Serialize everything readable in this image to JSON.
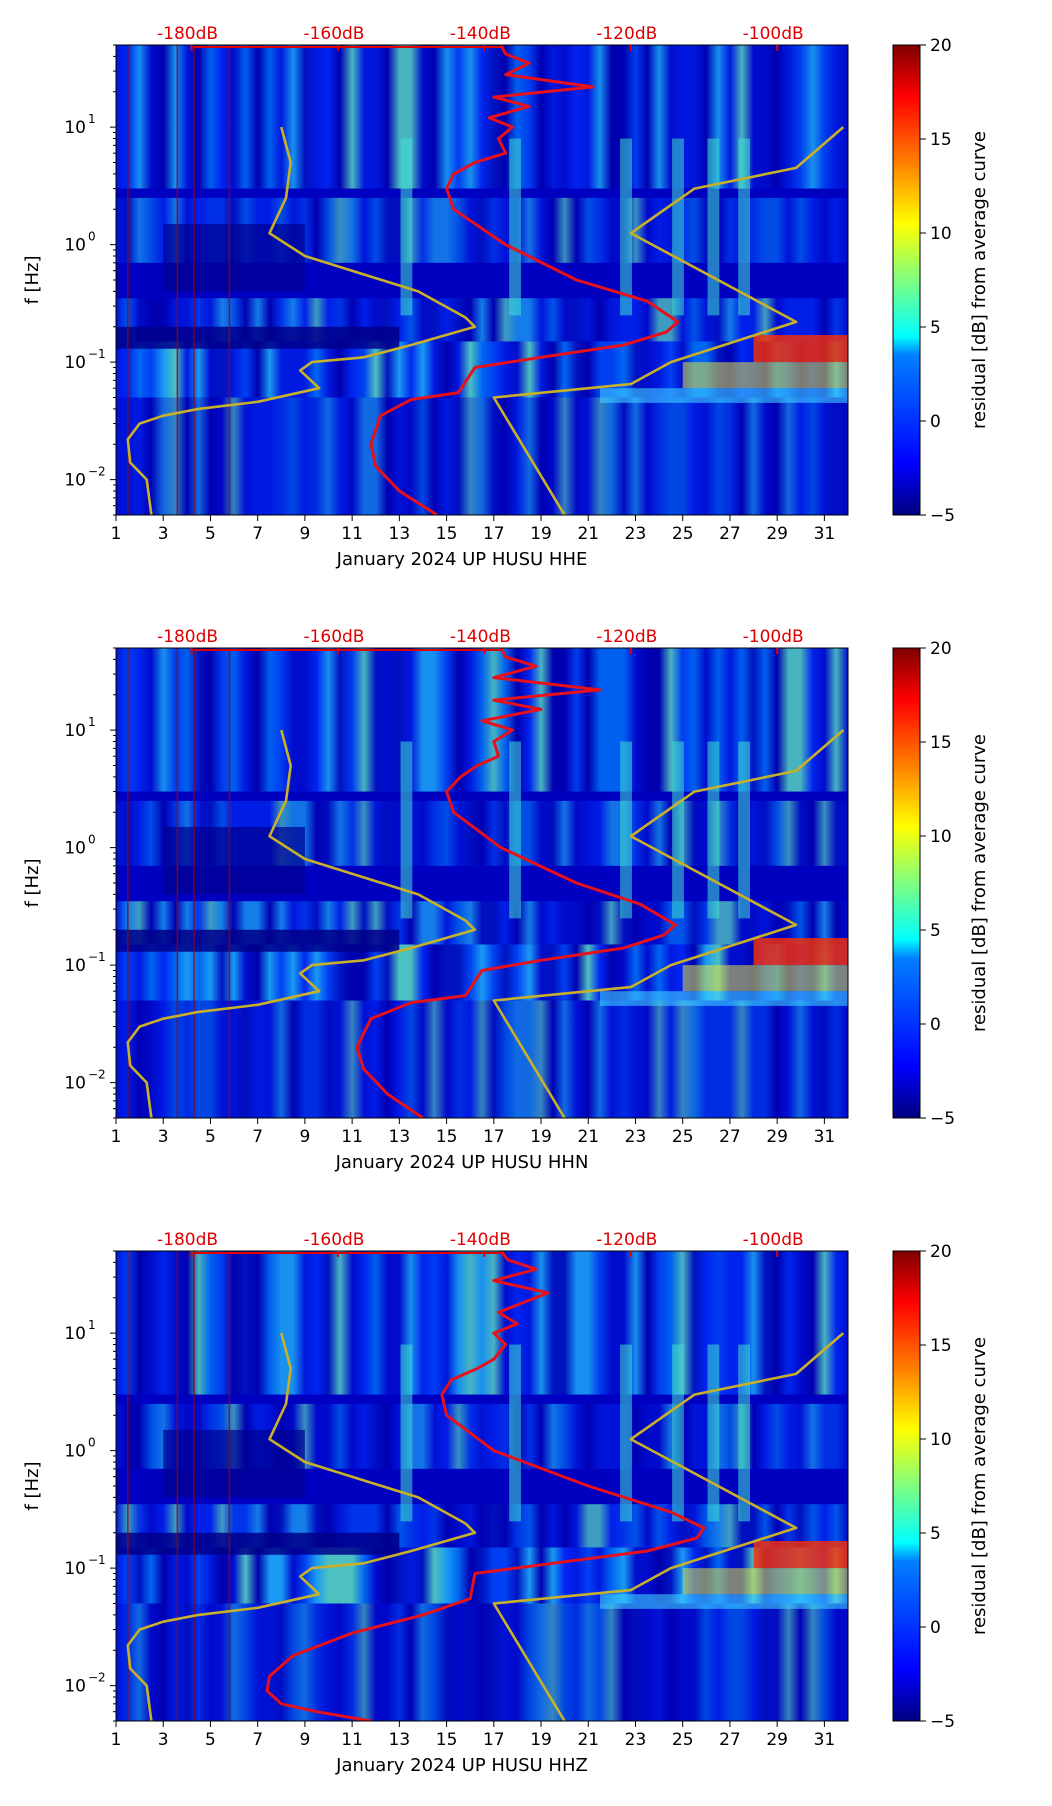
{
  "colors": {
    "red_curve": "#e8101a",
    "yellow_curve": "#c8b02a",
    "db_label": "#e00000",
    "colormap": [
      "#00007f",
      "#0000ff",
      "#007fff",
      "#00ffff",
      "#7fff7f",
      "#ffff00",
      "#ff7f00",
      "#ff0000",
      "#7f0000"
    ]
  },
  "colorbar": {
    "label": "residual [dB] from average curve",
    "ticks": [
      {
        "value": -5,
        "label": "−5"
      },
      {
        "value": 0,
        "label": "0"
      },
      {
        "value": 5,
        "label": "5"
      },
      {
        "value": 10,
        "label": "10"
      },
      {
        "value": 15,
        "label": "15"
      },
      {
        "value": 20,
        "label": "20"
      }
    ]
  },
  "chart_data": [
    {
      "type": "heatmap",
      "title": "",
      "xlabel": "January 2024 UP HUSU  HHE",
      "ylabel": "f [Hz]",
      "xlim": [
        1,
        32
      ],
      "ylim": [
        0.005,
        50
      ],
      "xticks": [
        "1",
        "3",
        "5",
        "7",
        "9",
        "11",
        "13",
        "15",
        "17",
        "19",
        "21",
        "23",
        "25",
        "27",
        "29",
        "31"
      ],
      "yticks": [
        {
          "value": 0.01,
          "label": "10"
        },
        {
          "value": 0.1,
          "label": "10"
        },
        {
          "value": 1,
          "label": "10"
        },
        {
          "value": 10,
          "label": "10"
        }
      ],
      "ytick_exponents": [
        "−2",
        "−1",
        "0",
        "1"
      ],
      "top_axis_labels": [
        "-180dB",
        "-160dB",
        "-140dB",
        "-120dB",
        "-100dB"
      ],
      "top_axis_positions": [
        4.2,
        10.4,
        16.6,
        22.8,
        29.0
      ],
      "colorbar_range": [
        -5,
        20
      ],
      "series": [
        {
          "name": "average curve (red)",
          "x": [
            14.6,
            13.0,
            12.0,
            11.8,
            12.2,
            13.5,
            15.5,
            16.2,
            19.0,
            22.5,
            24.3,
            24.8,
            23.5,
            20.5,
            17.5,
            15.3,
            15.0,
            15.3,
            16.2,
            17.5,
            17.2,
            17.8,
            16.8,
            18.5,
            17.0,
            21.2,
            17.5,
            18.5,
            17.5,
            17.3
          ],
          "y": [
            0.005,
            0.008,
            0.013,
            0.02,
            0.035,
            0.048,
            0.055,
            0.09,
            0.11,
            0.14,
            0.18,
            0.22,
            0.33,
            0.5,
            1.0,
            2.0,
            3.0,
            4.0,
            5.0,
            6.0,
            8.0,
            10.0,
            12.0,
            15.0,
            18.0,
            22.0,
            28.0,
            35.0,
            42.0,
            50.0
          ]
        },
        {
          "name": "noise model low (yellow)",
          "x": [
            2.5,
            2.3,
            1.6,
            1.5,
            2.0,
            3.0,
            4.5,
            7.0,
            9.6,
            8.8,
            9.3,
            11.5,
            13.5,
            16.2,
            15.8,
            13.8,
            9.0,
            7.5,
            8.2,
            8.4,
            8.0
          ],
          "y": [
            0.005,
            0.01,
            0.014,
            0.022,
            0.03,
            0.035,
            0.04,
            0.046,
            0.06,
            0.085,
            0.1,
            0.11,
            0.14,
            0.2,
            0.24,
            0.4,
            0.8,
            1.25,
            2.5,
            5.0,
            10.0
          ]
        },
        {
          "name": "noise model high (yellow)",
          "x": [
            20.0,
            17.0,
            22.8,
            24.5,
            29.8,
            22.8,
            25.5,
            29.8,
            31.8
          ],
          "y": [
            0.005,
            0.05,
            0.065,
            0.1,
            0.22,
            1.25,
            3.0,
            4.5,
            10.0
          ]
        }
      ]
    },
    {
      "type": "heatmap",
      "title": "",
      "xlabel": "January 2024 UP HUSU  HHN",
      "ylabel": "f [Hz]",
      "xlim": [
        1,
        32
      ],
      "ylim": [
        0.005,
        50
      ],
      "xticks": [
        "1",
        "3",
        "5",
        "7",
        "9",
        "11",
        "13",
        "15",
        "17",
        "19",
        "21",
        "23",
        "25",
        "27",
        "29",
        "31"
      ],
      "yticks": [
        {
          "value": 0.01,
          "label": "10"
        },
        {
          "value": 0.1,
          "label": "10"
        },
        {
          "value": 1,
          "label": "10"
        },
        {
          "value": 10,
          "label": "10"
        }
      ],
      "ytick_exponents": [
        "−2",
        "−1",
        "0",
        "1"
      ],
      "top_axis_labels": [
        "-180dB",
        "-160dB",
        "-140dB",
        "-120dB",
        "-100dB"
      ],
      "top_axis_positions": [
        4.2,
        10.4,
        16.6,
        22.8,
        29.0
      ],
      "colorbar_range": [
        -5,
        20
      ],
      "series": [
        {
          "name": "average curve (red)",
          "x": [
            14.0,
            12.5,
            11.5,
            11.2,
            11.8,
            13.5,
            15.8,
            16.5,
            19.0,
            22.5,
            24.2,
            24.7,
            23.2,
            20.5,
            17.3,
            15.3,
            15.0,
            15.6,
            16.3,
            17.2,
            17.0,
            17.8,
            16.5,
            19.0,
            17.0,
            21.5,
            17.0,
            18.8,
            17.5,
            17.3
          ],
          "y": [
            0.005,
            0.008,
            0.013,
            0.02,
            0.035,
            0.048,
            0.055,
            0.09,
            0.11,
            0.14,
            0.18,
            0.22,
            0.33,
            0.5,
            1.0,
            2.0,
            3.0,
            4.0,
            5.0,
            6.0,
            8.0,
            10.0,
            12.0,
            15.0,
            18.0,
            22.0,
            28.0,
            35.0,
            42.0,
            50.0
          ]
        },
        {
          "name": "noise model low (yellow)",
          "x": [
            2.5,
            2.3,
            1.6,
            1.5,
            2.0,
            3.0,
            4.5,
            7.0,
            9.6,
            8.8,
            9.3,
            11.5,
            13.5,
            16.2,
            15.8,
            13.8,
            9.0,
            7.5,
            8.2,
            8.4,
            8.0
          ],
          "y": [
            0.005,
            0.01,
            0.014,
            0.022,
            0.03,
            0.035,
            0.04,
            0.046,
            0.06,
            0.085,
            0.1,
            0.11,
            0.14,
            0.2,
            0.24,
            0.4,
            0.8,
            1.25,
            2.5,
            5.0,
            10.0
          ]
        },
        {
          "name": "noise model high (yellow)",
          "x": [
            20.0,
            17.0,
            22.8,
            24.5,
            29.8,
            22.8,
            25.5,
            29.8,
            31.8
          ],
          "y": [
            0.005,
            0.05,
            0.065,
            0.1,
            0.22,
            1.25,
            3.0,
            4.5,
            10.0
          ]
        }
      ]
    },
    {
      "type": "heatmap",
      "title": "",
      "xlabel": "January 2024 UP HUSU  HHZ",
      "ylabel": "f [Hz]",
      "xlim": [
        1,
        32
      ],
      "ylim": [
        0.005,
        50
      ],
      "xticks": [
        "1",
        "3",
        "5",
        "7",
        "9",
        "11",
        "13",
        "15",
        "17",
        "19",
        "21",
        "23",
        "25",
        "27",
        "29",
        "31"
      ],
      "yticks": [
        {
          "value": 0.01,
          "label": "10"
        },
        {
          "value": 0.1,
          "label": "10"
        },
        {
          "value": 1,
          "label": "10"
        },
        {
          "value": 10,
          "label": "10"
        }
      ],
      "ytick_exponents": [
        "−2",
        "−1",
        "0",
        "1"
      ],
      "top_axis_labels": [
        "-180dB",
        "-160dB",
        "-140dB",
        "-120dB",
        "-100dB"
      ],
      "top_axis_positions": [
        4.2,
        10.4,
        16.6,
        22.8,
        29.0
      ],
      "colorbar_range": [
        -5,
        20
      ],
      "series": [
        {
          "name": "average curve (red)",
          "x": [
            11.8,
            9.5,
            8.0,
            7.4,
            7.5,
            8.5,
            11.0,
            14.0,
            16.0,
            16.2,
            19.5,
            23.5,
            25.6,
            25.9,
            24.5,
            21.0,
            17.0,
            15.0,
            14.8,
            15.2,
            16.3,
            17.0,
            17.5,
            17.0,
            18.0,
            17.2,
            19.3,
            17.0,
            18.8,
            17.6,
            17.3
          ],
          "y": [
            0.005,
            0.006,
            0.007,
            0.009,
            0.012,
            0.018,
            0.028,
            0.04,
            0.055,
            0.09,
            0.11,
            0.14,
            0.18,
            0.22,
            0.3,
            0.5,
            1.0,
            2.0,
            3.0,
            4.0,
            5.0,
            6.0,
            8.0,
            10.0,
            12.0,
            15.0,
            22.0,
            28.0,
            35.0,
            42.0,
            50.0
          ]
        },
        {
          "name": "noise model low (yellow)",
          "x": [
            2.5,
            2.3,
            1.6,
            1.5,
            2.0,
            3.0,
            4.5,
            7.0,
            9.6,
            8.8,
            9.3,
            11.5,
            13.5,
            16.2,
            15.8,
            13.8,
            9.0,
            7.5,
            8.2,
            8.4,
            8.0
          ],
          "y": [
            0.005,
            0.01,
            0.014,
            0.022,
            0.03,
            0.035,
            0.04,
            0.046,
            0.06,
            0.085,
            0.1,
            0.11,
            0.14,
            0.2,
            0.24,
            0.4,
            0.8,
            1.25,
            2.5,
            5.0,
            10.0
          ]
        },
        {
          "name": "noise model high (yellow)",
          "x": [
            20.0,
            17.0,
            22.8,
            24.5,
            29.8,
            22.8,
            25.5,
            29.8,
            31.8
          ],
          "y": [
            0.005,
            0.05,
            0.065,
            0.1,
            0.22,
            1.25,
            3.0,
            4.5,
            10.0
          ]
        }
      ]
    }
  ]
}
